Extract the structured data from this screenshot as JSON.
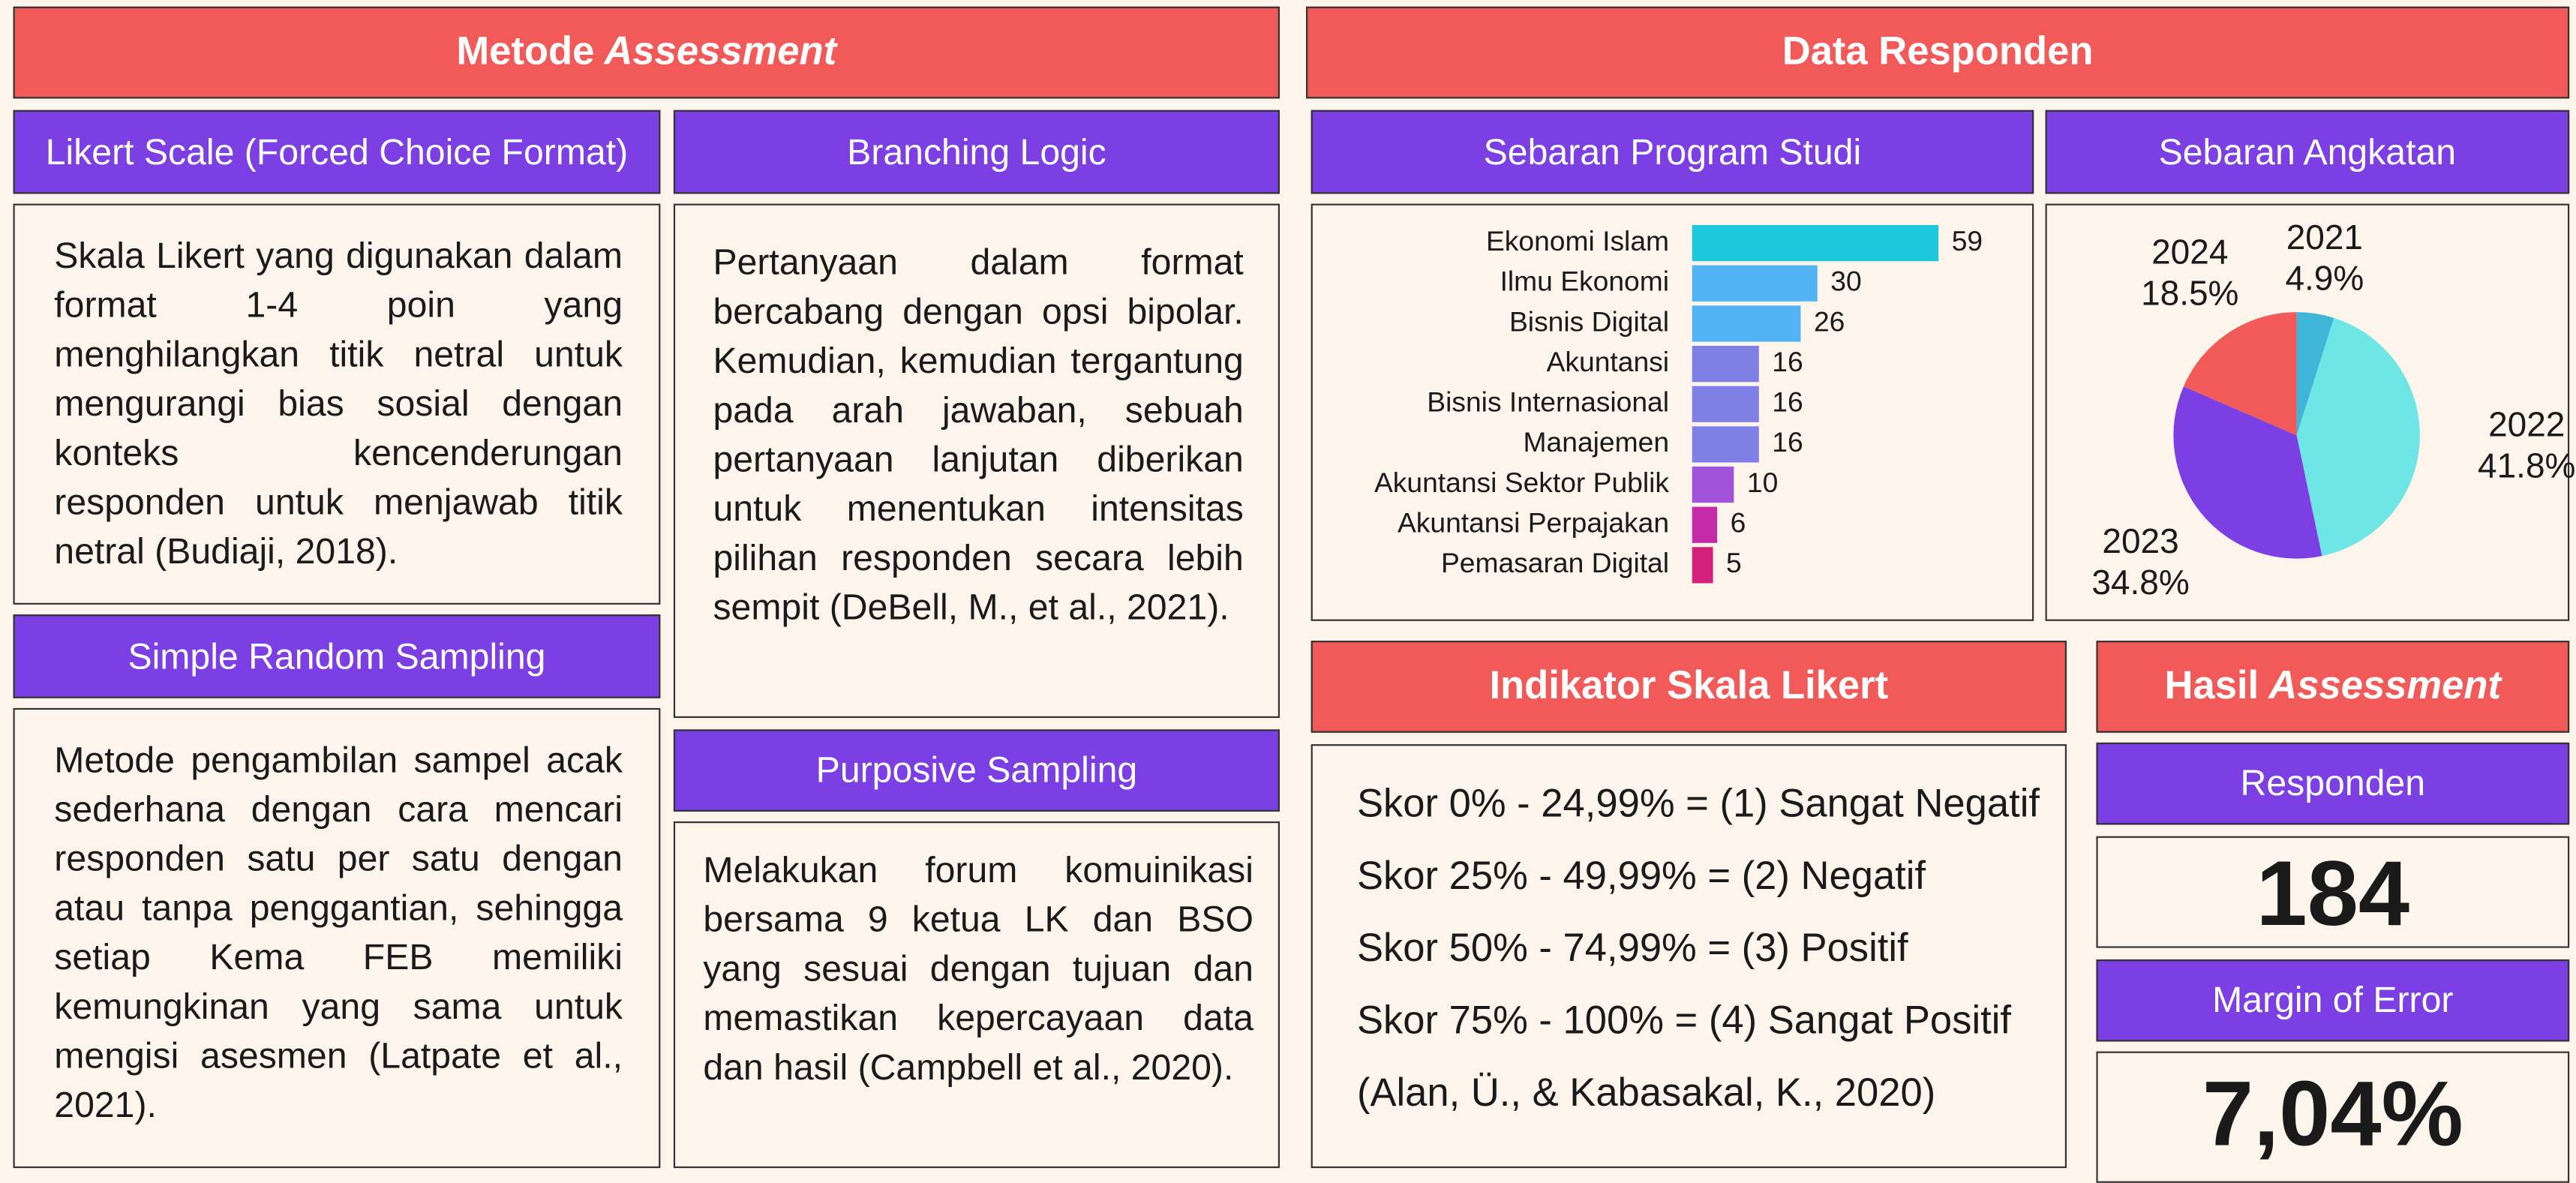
{
  "methods": {
    "title_plain": "Metode",
    "title_italic": "Assessment",
    "likert": {
      "title": "Likert Scale (Forced Choice Format)",
      "text": "Skala Likert yang digunakan dalam format 1-4 poin yang menghilangkan titik netral untuk mengurangi bias sosial dengan konteks kencenderungan responden untuk menjawab titik netral (Budiaji, 2018)."
    },
    "random": {
      "title": "Simple Random Sampling",
      "text": "Metode pengambilan sampel acak sederhana dengan cara mencari responden satu per satu dengan atau tanpa penggantian, sehingga setiap Kema FEB memiliki kemungkinan yang sama untuk mengisi asesmen (Latpate et al., 2021)."
    },
    "branching": {
      "title": "Branching Logic",
      "text": "Pertanyaan dalam format bercabang dengan opsi bipolar. Kemudian, kemudian tergantung pada arah jawaban, sebuah pertanyaan lanjutan diberikan untuk menentukan intensitas pilihan responden secara lebih sempit (DeBell, M., et al., 2021)."
    },
    "purposive": {
      "title": "Purposive Sampling",
      "text": "Melakukan forum komuinikasi bersama 9 ketua LK dan BSO yang sesuai dengan tujuan dan memastikan kepercayaan data dan hasil (Campbell et al., 2020)."
    }
  },
  "responden": {
    "title": "Data Responden",
    "program_studi": {
      "type": "bar",
      "title": "Sebaran Program Studi",
      "categories": [
        "Ekonomi Islam",
        "Ilmu Ekonomi",
        "Bisnis Digital",
        "Akuntansi",
        "Bisnis Internasional",
        "Manajemen",
        "Akuntansi Sektor Publik",
        "Akuntansi Perpajakan",
        "Pemasaran Digital"
      ],
      "values": [
        59,
        30,
        26,
        16,
        16,
        16,
        10,
        6,
        5
      ],
      "colors": [
        "#1ec8dc",
        "#52b4f2",
        "#52b4f2",
        "#7f7fe6",
        "#7f7fe6",
        "#7f7fe6",
        "#a052d8",
        "#c42aa8",
        "#d4207a"
      ]
    },
    "angkatan": {
      "type": "pie",
      "title": "Sebaran Angkatan",
      "categories": [
        "2021",
        "2022",
        "2023",
        "2024"
      ],
      "values": [
        4.9,
        41.8,
        34.8,
        18.5
      ],
      "value_labels": [
        "4.9%",
        "41.8%",
        "34.8%",
        "18.5%"
      ],
      "colors": [
        "#3fb6d8",
        "#6ee6e6",
        "#7b3fe4",
        "#f25a5a"
      ]
    }
  },
  "indikator": {
    "title": "Indikator Skala Likert",
    "lines": [
      "Skor 0% - 24,99% = (1) Sangat Negatif",
      "Skor 25% - 49,99% = (2) Negatif",
      "Skor 50% - 74,99% = (3) Positif",
      "Skor 75% - 100% = (4) Sangat Positif",
      "(Alan, Ü., & Kabasakal, K., 2020)"
    ]
  },
  "hasil": {
    "title_plain": "Hasil",
    "title_italic": "Assessment",
    "responden_label": "Responden",
    "responden_value": 184,
    "moe_label": "Margin of Error",
    "moe_value": "7,04%"
  }
}
